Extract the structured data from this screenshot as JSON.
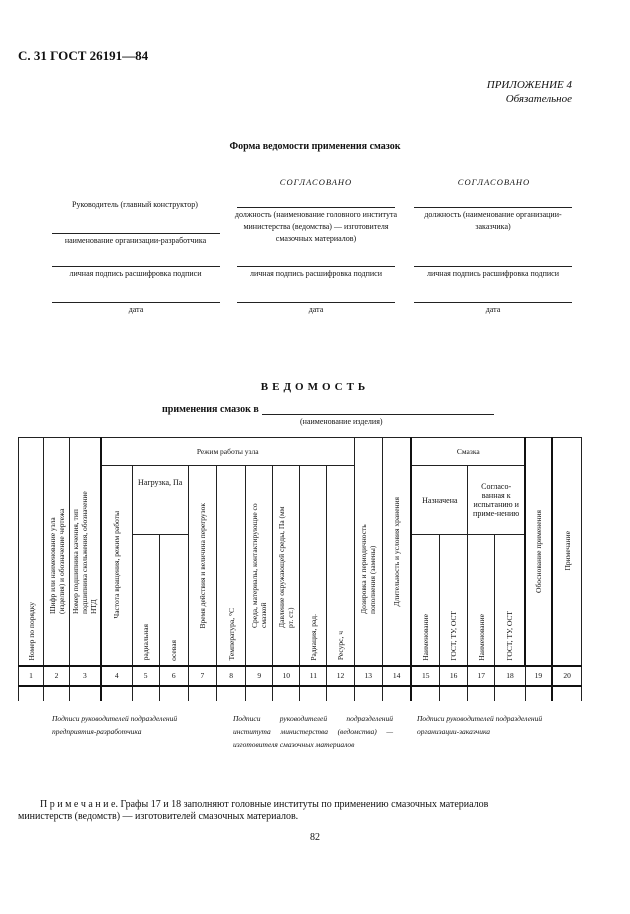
{
  "header": "С. 31 ГОСТ 26191—84",
  "appendix": {
    "title": "ПРИЛОЖЕНИЕ 4",
    "status": "Обязательное"
  },
  "form_title": "Форма ведомости применения смазок",
  "approvals": {
    "agreed": "СОГЛАСОВАНО",
    "left": {
      "head": "Руководитель (главный конструктор)",
      "org": "наименование организации-разработчика",
      "sign": "личная подпись   расшифровка подписи",
      "date": "дата"
    },
    "middle": {
      "position": "должность (наименование головного института министерства (ведомства) — изготовителя смазочных материалов)",
      "sign": "личная подпись  расшифровка подписи",
      "date": "дата"
    },
    "right": {
      "position": "должность (наименование организации-заказчика)",
      "sign": "личная подпись  расшифровка подписи",
      "date": "дата"
    }
  },
  "vedomost": {
    "title": "ВЕДОМОСТЬ",
    "subtitle": "применения смазок в",
    "caption": "(наименование изделия)"
  },
  "table": {
    "group_mode": "Режим работы узла",
    "group_load": "Нагрузка, Па",
    "group_lube": "Смазка",
    "group_assigned": "Назначена",
    "group_agreed": "Согласо-ванная к испытанию и приме-нению",
    "columns": [
      "Номер по порядку",
      "Шифр или наименование узла (изделия) и обозначение чертежа",
      "Номер подшипника качения, тип подшипника скольжения, обозначение НТД",
      "Частота вращения, режим работы",
      "радиальная",
      "осевая",
      "Время действия и величина перегрузок",
      "Температура, °С",
      "Среда, материалы, контактирующие со смазкой",
      "Давление окружающей среды, Па (мм рт. ст.)",
      "Радиация, рад.",
      "Ресурс, ч",
      "Дозировка и периодичность пополнения (замены)",
      "Длительность и условия хранения",
      "Наименование",
      "ГОСТ, ТУ, ОСТ",
      "Наименование",
      "ГОСТ, ТУ, ОСТ",
      "Обоснование применения",
      "Примечание"
    ],
    "numbers": [
      "1",
      "2",
      "3",
      "4",
      "5",
      "6",
      "7",
      "8",
      "9",
      "10",
      "11",
      "12",
      "13",
      "14",
      "15",
      "16",
      "17",
      "18",
      "19",
      "20"
    ]
  },
  "signatures": [
    "Подписи руководителей подразделений предприятия-разработчика",
    "Подписи руководителей подразделений института министерства (ведомства) — изготовителя смазочных материалов",
    "Подписи руководителей подразделений организации-заказчика"
  ],
  "note": {
    "label": "П р и м е ч а н и е.",
    "text": " Графы 17 и 18 заполняют головные институты по применению смазочных материалов",
    "text2": "министерств (ведомств) — изготовителей смазочных материалов."
  },
  "page_number": "82"
}
